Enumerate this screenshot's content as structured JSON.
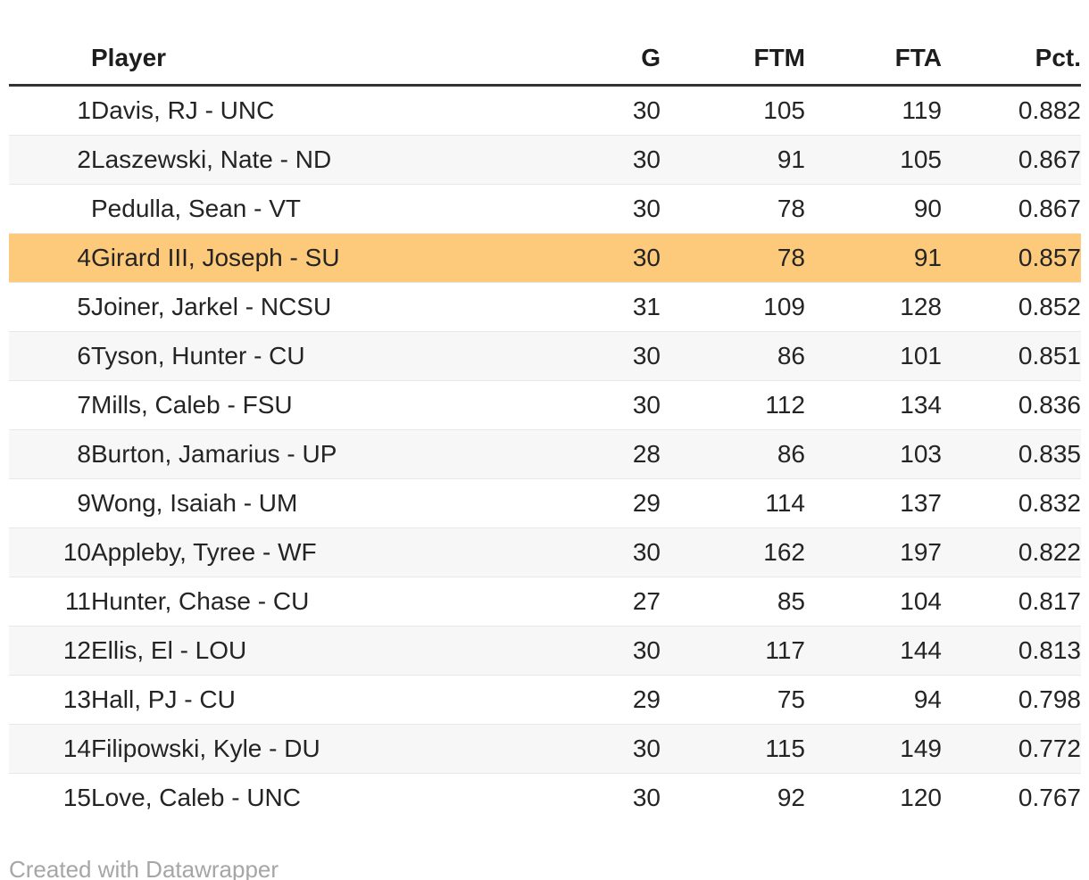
{
  "chart_data": {
    "type": "table",
    "title": "",
    "columns": [
      "",
      "Player",
      "G",
      "FTM",
      "FTA",
      "Pct."
    ],
    "rows": [
      {
        "rank": "1",
        "player": "Davis, RJ - UNC",
        "g": "30",
        "ftm": "105",
        "fta": "119",
        "pct": "0.882",
        "highlight": false
      },
      {
        "rank": "2",
        "player": "Laszewski, Nate - ND",
        "g": "30",
        "ftm": "91",
        "fta": "105",
        "pct": "0.867",
        "highlight": false
      },
      {
        "rank": "",
        "player": "Pedulla, Sean - VT",
        "g": "30",
        "ftm": "78",
        "fta": "90",
        "pct": "0.867",
        "highlight": false
      },
      {
        "rank": "4",
        "player": "Girard III, Joseph - SU",
        "g": "30",
        "ftm": "78",
        "fta": "91",
        "pct": "0.857",
        "highlight": true
      },
      {
        "rank": "5",
        "player": "Joiner, Jarkel - NCSU",
        "g": "31",
        "ftm": "109",
        "fta": "128",
        "pct": "0.852",
        "highlight": false
      },
      {
        "rank": "6",
        "player": "Tyson, Hunter - CU",
        "g": "30",
        "ftm": "86",
        "fta": "101",
        "pct": "0.851",
        "highlight": false
      },
      {
        "rank": "7",
        "player": "Mills, Caleb - FSU",
        "g": "30",
        "ftm": "112",
        "fta": "134",
        "pct": "0.836",
        "highlight": false
      },
      {
        "rank": "8",
        "player": "Burton, Jamarius - UP",
        "g": "28",
        "ftm": "86",
        "fta": "103",
        "pct": "0.835",
        "highlight": false
      },
      {
        "rank": "9",
        "player": "Wong, Isaiah - UM",
        "g": "29",
        "ftm": "114",
        "fta": "137",
        "pct": "0.832",
        "highlight": false
      },
      {
        "rank": "10",
        "player": "Appleby, Tyree - WF",
        "g": "30",
        "ftm": "162",
        "fta": "197",
        "pct": "0.822",
        "highlight": false
      },
      {
        "rank": "11",
        "player": "Hunter, Chase - CU",
        "g": "27",
        "ftm": "85",
        "fta": "104",
        "pct": "0.817",
        "highlight": false
      },
      {
        "rank": "12",
        "player": "Ellis, El - LOU",
        "g": "30",
        "ftm": "117",
        "fta": "144",
        "pct": "0.813",
        "highlight": false
      },
      {
        "rank": "13",
        "player": "Hall, PJ - CU",
        "g": "29",
        "ftm": "75",
        "fta": "94",
        "pct": "0.798",
        "highlight": false
      },
      {
        "rank": "14",
        "player": "Filipowski, Kyle - DU",
        "g": "30",
        "ftm": "115",
        "fta": "149",
        "pct": "0.772",
        "highlight": false
      },
      {
        "rank": "15",
        "player": "Love, Caleb - UNC",
        "g": "30",
        "ftm": "92",
        "fta": "120",
        "pct": "0.767",
        "highlight": false
      }
    ],
    "layout": {
      "zebra_striping": true,
      "legend_position": "none",
      "grid": "horizontal-row-borders"
    },
    "colors": {
      "highlight_row": "#fdc97a",
      "zebra_row": "#f7f7f7",
      "header_rule": "#333333",
      "row_border": "#e8e8e8",
      "text": "#242424",
      "credit_text": "#a6a6a6",
      "background": "#ffffff"
    }
  },
  "footer": {
    "credit": "Created with Datawrapper"
  }
}
